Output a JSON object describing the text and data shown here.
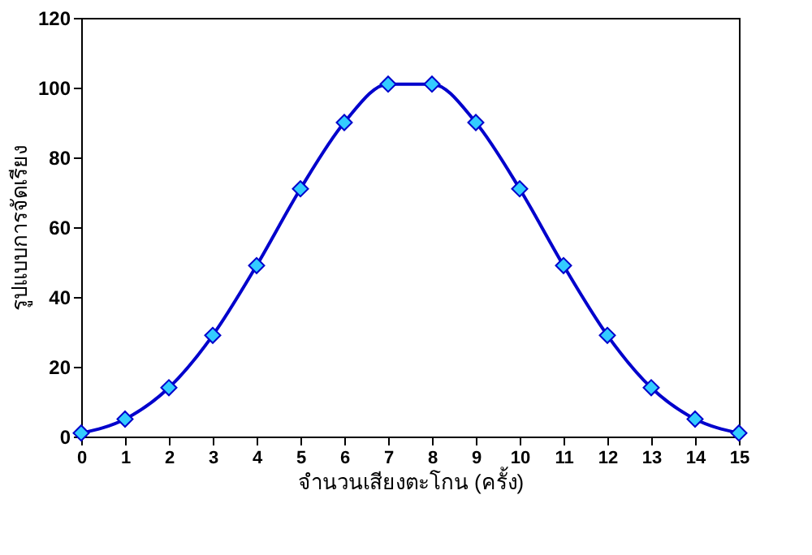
{
  "chart_data": {
    "type": "line",
    "xlabel": "จำนวนเสียงตะโกน (ครั้ง)",
    "ylabel": "รูปแบบการจัดเรียง",
    "x": [
      0,
      1,
      2,
      3,
      4,
      5,
      6,
      7,
      8,
      9,
      10,
      11,
      12,
      13,
      14,
      15
    ],
    "series": [
      {
        "color": "#0000cc",
        "values": [
          1,
          5,
          14,
          29,
          49,
          71,
          90,
          101,
          101,
          90,
          71,
          49,
          29,
          14,
          5,
          1
        ]
      }
    ],
    "xlim": [
      0,
      15
    ],
    "xticks": [
      0,
      1,
      2,
      3,
      4,
      5,
      6,
      7,
      8,
      9,
      10,
      11,
      12,
      13,
      14,
      15
    ],
    "ylim": [
      0,
      120
    ],
    "yticks": [
      0,
      20,
      40,
      60,
      80,
      100,
      120
    ],
    "grid": false,
    "marker": "diamond",
    "line_style": "solid"
  }
}
